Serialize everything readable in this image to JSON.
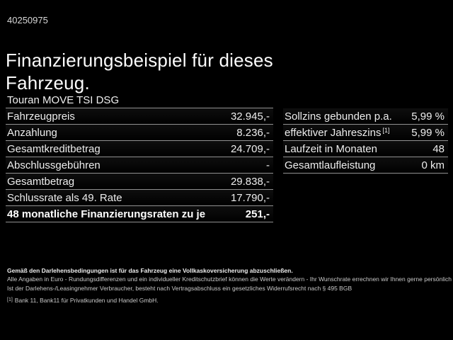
{
  "page": {
    "id_number": "40250975",
    "title": "Finanzierungsbeispiel für dieses Fahrzeug."
  },
  "vehicle": {
    "model": "Touran MOVE TSI DSG"
  },
  "finance_table": {
    "rows": [
      {
        "label": "Fahrzeugpreis",
        "value": "32.945,-",
        "bold": false
      },
      {
        "label": "Anzahlung",
        "value": "8.236,-",
        "bold": false
      },
      {
        "label": "Gesamtkreditbetrag",
        "value": "24.709,-",
        "bold": false
      },
      {
        "label": "Abschlussgebühren",
        "value": "-",
        "bold": false
      },
      {
        "label": "Gesamtbetrag",
        "value": "29.838,-",
        "bold": false
      },
      {
        "label": "Schlussrate als 49. Rate",
        "value": "17.790,-",
        "bold": false
      },
      {
        "label": "48 monatliche Finanzierungsraten zu je",
        "value": "251,-",
        "bold": true
      }
    ]
  },
  "conditions_table": {
    "rows": [
      {
        "label": "Sollzins gebunden p.a.",
        "sup": "",
        "value": "5,99 %"
      },
      {
        "label": "effektiver Jahreszins",
        "sup": "[1]",
        "value": "5,99 %"
      },
      {
        "label": "Laufzeit in Monaten",
        "sup": "",
        "value": "48"
      },
      {
        "label": "Gesamtlaufleistung",
        "sup": "",
        "value": "0 km"
      }
    ]
  },
  "footer": {
    "bold_note": "Gemäß den Darlehensbedingungen ist für das Fahrzeug eine Vollkaskoversicherung abzuschließen.",
    "note_lines": [
      "Alle Angaben in Euro - Rundungsdifferenzen und ein individueller Kreditschutzbrief können die Werte verändern - Ihr Wunschrate errechnen wir Ihnen gerne persönlich",
      "Ist der Darlehens-/Leasingnehmer Verbraucher, besteht nach Vertragsabschluss ein gesetzliches Widerrufsrecht nach § 495 BGB"
    ],
    "footnote_marker": "[1]",
    "footnote_text": "Bank 11, Bank11 für Privatkunden und Handel GmbH."
  },
  "colors": {
    "background": "#000000",
    "text_primary": "#f2f2f2",
    "text_secondary": "#c9c9c9",
    "separator": "#909090"
  }
}
